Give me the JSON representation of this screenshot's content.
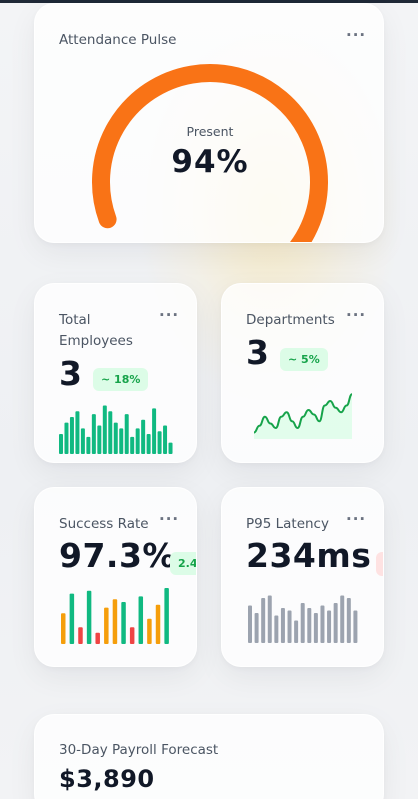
{
  "attendance": {
    "title": "Attendance Pulse",
    "center_label": "Present",
    "value_label": "94%",
    "fraction": 0.94,
    "accent_color": "#f97316",
    "track_color": "#e5e7eb",
    "menu_icon": "more-horizontal-icon"
  },
  "total_employees": {
    "title": "Total Employees",
    "value": "3",
    "trend": "~ 18%",
    "bar_color": "#10b981",
    "bars": [
      0.35,
      0.55,
      0.65,
      0.75,
      0.45,
      0.3,
      0.7,
      0.5,
      0.85,
      0.75,
      0.55,
      0.45,
      0.7,
      0.3,
      0.45,
      0.6,
      0.35,
      0.8,
      0.4,
      0.5,
      0.2
    ],
    "menu_icon": "more-horizontal-icon"
  },
  "departments": {
    "title": "Departments",
    "value": "3",
    "trend": "~ 5%",
    "line_color": "#16a34a",
    "area_color": "#dcfce7",
    "points": [
      0.1,
      0.25,
      0.45,
      0.3,
      0.2,
      0.45,
      0.55,
      0.35,
      0.2,
      0.45,
      0.6,
      0.5,
      0.35,
      0.7,
      0.8,
      0.65,
      0.55,
      0.7,
      0.95
    ],
    "menu_icon": "more-horizontal-icon"
  },
  "success_rate": {
    "title": "Success Rate",
    "value": "97.3%",
    "trend": "2.4",
    "bars": [
      {
        "v": 0.55,
        "c": "#f59e0b"
      },
      {
        "v": 0.9,
        "c": "#10b981"
      },
      {
        "v": 0.3,
        "c": "#ef4444"
      },
      {
        "v": 0.95,
        "c": "#10b981"
      },
      {
        "v": 0.2,
        "c": "#ef4444"
      },
      {
        "v": 0.65,
        "c": "#f59e0b"
      },
      {
        "v": 0.8,
        "c": "#f59e0b"
      },
      {
        "v": 0.75,
        "c": "#10b981"
      },
      {
        "v": 0.3,
        "c": "#ef4444"
      },
      {
        "v": 0.85,
        "c": "#10b981"
      },
      {
        "v": 0.45,
        "c": "#f59e0b"
      },
      {
        "v": 0.7,
        "c": "#f59e0b"
      },
      {
        "v": 1.0,
        "c": "#10b981"
      }
    ],
    "menu_icon": "more-horizontal-icon"
  },
  "p95_latency": {
    "title": "P95 Latency",
    "value": "234ms",
    "bar_color": "#9ca3af",
    "bars": [
      0.75,
      0.6,
      0.9,
      0.95,
      0.55,
      0.7,
      0.65,
      0.45,
      0.8,
      0.7,
      0.6,
      0.75,
      0.65,
      0.8,
      0.95,
      0.9,
      0.65
    ],
    "menu_icon": "more-horizontal-icon"
  },
  "payroll": {
    "title": "30-Day Payroll Forecast",
    "value": "$3,890"
  }
}
